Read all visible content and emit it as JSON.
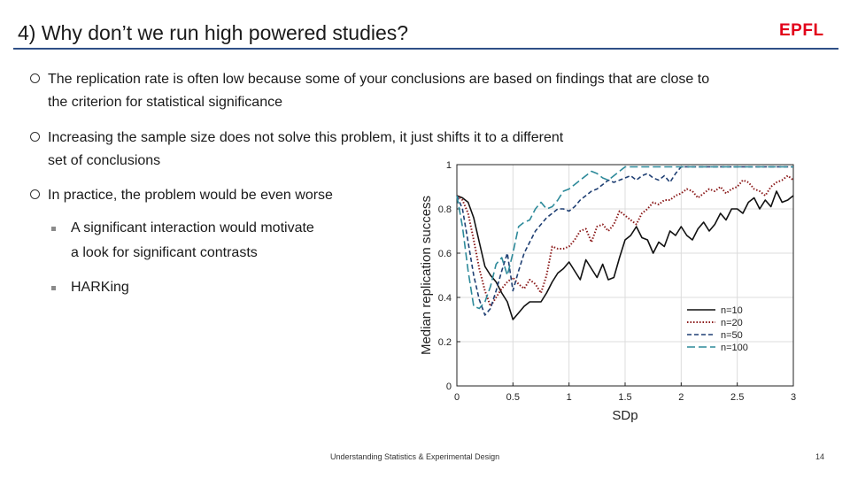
{
  "slide": {
    "title": "4) Why don’t we run high powered studies?",
    "logo_text": "EPFL",
    "bullets": [
      {
        "lines": [
          "The replication rate is often low because some of your conclusions are based on findings that are close to",
          "the criterion for statistical significance"
        ]
      },
      {
        "lines": [
          "Increasing the sample size does not solve this problem, it just shifts it to a different",
          "set of conclusions"
        ]
      },
      {
        "lines": [
          "In practice, the problem would be even worse"
        ]
      }
    ],
    "sub_bullets": [
      {
        "lines": [
          "A significant interaction would motivate",
          "a look for significant contrasts"
        ]
      },
      {
        "lines": [
          "HARKing"
        ]
      }
    ],
    "footer": "Understanding Statistics & Experimental Design",
    "page_number": "14",
    "colors": {
      "accent_rule": "#2f4f86",
      "logo": "#e2001a"
    }
  },
  "chart_data": {
    "type": "line",
    "xlabel": "SDp",
    "ylabel": "Median replication success",
    "xlim": [
      0,
      3
    ],
    "ylim": [
      0,
      1
    ],
    "xticks": [
      "0",
      "0.5",
      "1",
      "1.5",
      "2",
      "2.5",
      "3"
    ],
    "xtick_values": [
      0,
      0.5,
      1,
      1.5,
      2,
      2.5,
      3
    ],
    "yticks": [
      "0",
      "0.2",
      "0.4",
      "0.6",
      "0.8",
      "1"
    ],
    "ytick_values": [
      0,
      0.2,
      0.4,
      0.6,
      0.8,
      1
    ],
    "legend_position": "bottom-right",
    "series": [
      {
        "name": "n=10",
        "color": "#111111",
        "dash": "solid",
        "x": [
          0,
          0.05,
          0.1,
          0.15,
          0.2,
          0.25,
          0.3,
          0.35,
          0.4,
          0.45,
          0.5,
          0.55,
          0.6,
          0.65,
          0.7,
          0.75,
          0.8,
          0.85,
          0.9,
          0.95,
          1.0,
          1.05,
          1.1,
          1.15,
          1.2,
          1.25,
          1.3,
          1.35,
          1.4,
          1.45,
          1.5,
          1.55,
          1.6,
          1.65,
          1.7,
          1.75,
          1.8,
          1.85,
          1.9,
          1.95,
          2.0,
          2.05,
          2.1,
          2.15,
          2.2,
          2.25,
          2.3,
          2.35,
          2.4,
          2.45,
          2.5,
          2.55,
          2.6,
          2.65,
          2.7,
          2.75,
          2.8,
          2.85,
          2.9,
          2.95,
          3.0
        ],
        "y": [
          0.86,
          0.85,
          0.83,
          0.76,
          0.65,
          0.54,
          0.5,
          0.47,
          0.42,
          0.38,
          0.3,
          0.33,
          0.36,
          0.38,
          0.38,
          0.38,
          0.42,
          0.47,
          0.51,
          0.53,
          0.56,
          0.52,
          0.48,
          0.57,
          0.53,
          0.49,
          0.55,
          0.48,
          0.49,
          0.58,
          0.66,
          0.68,
          0.72,
          0.67,
          0.66,
          0.6,
          0.65,
          0.63,
          0.7,
          0.68,
          0.72,
          0.68,
          0.66,
          0.71,
          0.74,
          0.7,
          0.73,
          0.78,
          0.75,
          0.8,
          0.8,
          0.78,
          0.83,
          0.85,
          0.8,
          0.84,
          0.81,
          0.88,
          0.83,
          0.84,
          0.86
        ]
      },
      {
        "name": "n=20",
        "color": "#8b1a1a",
        "dash": "dotted",
        "x": [
          0,
          0.05,
          0.1,
          0.15,
          0.2,
          0.25,
          0.3,
          0.35,
          0.4,
          0.45,
          0.5,
          0.55,
          0.6,
          0.65,
          0.7,
          0.75,
          0.8,
          0.85,
          0.9,
          0.95,
          1.0,
          1.05,
          1.1,
          1.15,
          1.2,
          1.25,
          1.3,
          1.35,
          1.4,
          1.45,
          1.5,
          1.55,
          1.6,
          1.65,
          1.7,
          1.75,
          1.8,
          1.85,
          1.9,
          1.95,
          2.0,
          2.05,
          2.1,
          2.15,
          2.2,
          2.25,
          2.3,
          2.35,
          2.4,
          2.45,
          2.5,
          2.55,
          2.6,
          2.65,
          2.7,
          2.75,
          2.8,
          2.85,
          2.9,
          2.95,
          3.0
        ],
        "y": [
          0.86,
          0.84,
          0.78,
          0.66,
          0.53,
          0.43,
          0.36,
          0.4,
          0.44,
          0.47,
          0.49,
          0.46,
          0.44,
          0.48,
          0.46,
          0.42,
          0.5,
          0.63,
          0.62,
          0.62,
          0.63,
          0.66,
          0.7,
          0.71,
          0.65,
          0.72,
          0.73,
          0.7,
          0.73,
          0.79,
          0.77,
          0.75,
          0.73,
          0.78,
          0.8,
          0.83,
          0.82,
          0.84,
          0.84,
          0.86,
          0.87,
          0.89,
          0.88,
          0.85,
          0.87,
          0.89,
          0.88,
          0.9,
          0.87,
          0.89,
          0.9,
          0.93,
          0.92,
          0.89,
          0.88,
          0.86,
          0.9,
          0.92,
          0.93,
          0.95,
          0.93
        ]
      },
      {
        "name": "n=50",
        "color": "#1f3f73",
        "dash": "dashed",
        "x": [
          0,
          0.05,
          0.1,
          0.15,
          0.2,
          0.25,
          0.3,
          0.35,
          0.4,
          0.45,
          0.5,
          0.55,
          0.6,
          0.65,
          0.7,
          0.75,
          0.8,
          0.85,
          0.9,
          0.95,
          1.0,
          1.05,
          1.1,
          1.15,
          1.2,
          1.25,
          1.3,
          1.35,
          1.4,
          1.45,
          1.5,
          1.55,
          1.6,
          1.65,
          1.7,
          1.75,
          1.8,
          1.85,
          1.9,
          1.95,
          2.0,
          2.05,
          2.1,
          2.15,
          2.2,
          2.25,
          2.3,
          2.35,
          2.4,
          2.45,
          2.5,
          2.55,
          2.6,
          2.65,
          2.7,
          2.75,
          2.8,
          2.85,
          2.9,
          2.95,
          3.0
        ],
        "y": [
          0.86,
          0.8,
          0.65,
          0.5,
          0.39,
          0.32,
          0.35,
          0.43,
          0.52,
          0.6,
          0.43,
          0.52,
          0.6,
          0.65,
          0.7,
          0.73,
          0.76,
          0.78,
          0.8,
          0.8,
          0.79,
          0.81,
          0.84,
          0.86,
          0.88,
          0.89,
          0.91,
          0.93,
          0.92,
          0.93,
          0.94,
          0.95,
          0.93,
          0.95,
          0.96,
          0.94,
          0.93,
          0.95,
          0.92,
          0.96,
          0.99,
          0.99,
          0.99,
          0.99,
          0.99,
          0.99,
          0.99,
          0.99,
          0.99,
          0.99,
          0.99,
          0.99,
          0.99,
          0.99,
          0.99,
          0.99,
          0.99,
          0.99,
          0.99,
          0.99,
          0.99
        ]
      },
      {
        "name": "n=100",
        "color": "#2d8a9a",
        "dash": "longdash",
        "x": [
          0,
          0.05,
          0.1,
          0.15,
          0.2,
          0.25,
          0.3,
          0.35,
          0.4,
          0.45,
          0.5,
          0.55,
          0.6,
          0.65,
          0.7,
          0.75,
          0.8,
          0.85,
          0.9,
          0.95,
          1.0,
          1.05,
          1.1,
          1.15,
          1.2,
          1.25,
          1.3,
          1.35,
          1.4,
          1.45,
          1.5,
          1.55,
          1.6,
          1.65,
          1.7,
          1.75,
          1.8,
          1.85,
          1.9,
          1.95,
          2.0,
          2.05,
          2.1,
          2.15,
          2.2,
          2.25,
          2.3,
          2.35,
          2.4,
          2.45,
          2.5,
          2.55,
          2.6,
          2.65,
          2.7,
          2.75,
          2.8,
          2.85,
          2.9,
          2.95,
          3.0
        ],
        "y": [
          0.86,
          0.72,
          0.52,
          0.36,
          0.35,
          0.38,
          0.45,
          0.55,
          0.58,
          0.5,
          0.6,
          0.72,
          0.74,
          0.75,
          0.8,
          0.83,
          0.8,
          0.81,
          0.84,
          0.88,
          0.89,
          0.91,
          0.93,
          0.95,
          0.97,
          0.96,
          0.94,
          0.93,
          0.95,
          0.97,
          0.99,
          0.99,
          0.99,
          0.99,
          0.99,
          0.99,
          0.99,
          0.99,
          0.99,
          0.99,
          0.99,
          0.99,
          0.99,
          0.99,
          0.99,
          0.99,
          0.99,
          0.99,
          0.99,
          0.99,
          0.99,
          0.99,
          0.99,
          0.99,
          0.99,
          0.99,
          0.99,
          0.99,
          0.99,
          0.99,
          0.99
        ]
      }
    ]
  }
}
